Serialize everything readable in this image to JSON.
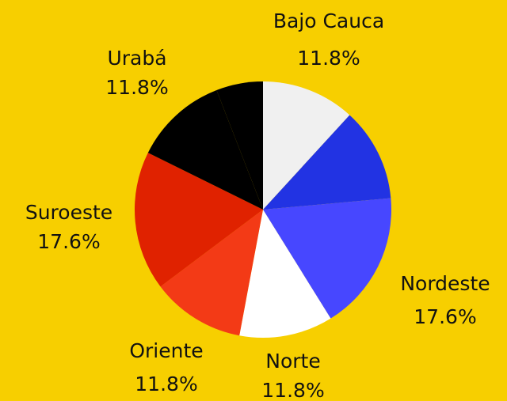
{
  "chart_data": {
    "type": "pie",
    "categories": [
      "Bajo Cauca",
      null,
      "Nordeste",
      "Norte",
      "Oriente",
      "Suroeste",
      "Urabá",
      null
    ],
    "values": [
      11.8,
      11.8,
      17.6,
      11.8,
      11.8,
      17.6,
      11.8,
      5.9
    ],
    "value_labels": [
      "11.8%",
      null,
      "17.6%",
      "11.8%",
      "11.8%",
      "17.6%",
      "11.8%",
      null
    ],
    "colors": [
      "#f0f0f0",
      "#2233e3",
      "#4747ff",
      "#ffffff",
      "#f33a16",
      "#e02200",
      "#000000",
      "#000000"
    ]
  }
}
